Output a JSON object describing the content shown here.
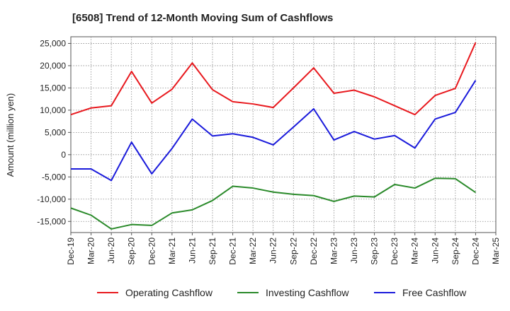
{
  "chart_data": {
    "type": "line",
    "title": "[6508]  Trend of 12-Month Moving Sum of Cashflows",
    "xlabel": "",
    "ylabel": "Amount (million yen)",
    "ylim": [
      -17500,
      26500
    ],
    "yticks": [
      25000,
      20000,
      15000,
      10000,
      5000,
      0,
      -5000,
      -10000,
      -15000
    ],
    "ytick_labels": [
      "25,000",
      "20,000",
      "15,000",
      "10,000",
      "5,000",
      "0",
      "-5,000",
      "-10,000",
      "-15,000"
    ],
    "x_tick_labels": [
      "Dec-19",
      "Mar-20",
      "Jun-20",
      "Sep-20",
      "Dec-20",
      "Mar-21",
      "Jun-21",
      "Sep-21",
      "Dec-21",
      "Mar-22",
      "Jun-22",
      "Sep-22",
      "Dec-22",
      "Mar-23",
      "Jun-23",
      "Sep-23",
      "Dec-23",
      "Mar-24",
      "Jun-24",
      "Sep-24",
      "Dec-24",
      "Mar-25"
    ],
    "categories": [
      "Dec-19",
      "Mar-20",
      "Jun-20",
      "Sep-20",
      "Dec-20",
      "Mar-21",
      "Jun-21",
      "Sep-21",
      "Dec-21",
      "Mar-22",
      "Jun-22",
      "Sep-22",
      "Dec-22",
      "Mar-23",
      "Jun-23",
      "Sep-23",
      "Dec-23",
      "Mar-24",
      "Jun-24",
      "Sep-24",
      "Dec-24"
    ],
    "grid": true,
    "legend_position": "bottom",
    "series": [
      {
        "name": "Operating Cashflow",
        "color": "#e8191e",
        "values": [
          9000,
          10500,
          11000,
          18700,
          11600,
          14700,
          20600,
          14600,
          11900,
          11400,
          10600,
          15000,
          19500,
          13800,
          14500,
          13000,
          11000,
          9000,
          13300,
          14900,
          25200
        ]
      },
      {
        "name": "Investing Cashflow",
        "color": "#2a8a2a",
        "values": [
          -12000,
          -13600,
          -16700,
          -15700,
          -15900,
          -13100,
          -12400,
          -10300,
          -7100,
          -7500,
          -8400,
          -8900,
          -9200,
          -10500,
          -9300,
          -9500,
          -6700,
          -7500,
          -5300,
          -5400,
          -8500
        ]
      },
      {
        "name": "Free Cashflow",
        "color": "#1a1adb",
        "values": [
          -3200,
          -3200,
          -5800,
          2800,
          -4300,
          1400,
          8000,
          4200,
          4700,
          3900,
          2200,
          6200,
          10300,
          3300,
          5200,
          3500,
          4300,
          1500,
          8000,
          9500,
          16700
        ]
      }
    ]
  }
}
